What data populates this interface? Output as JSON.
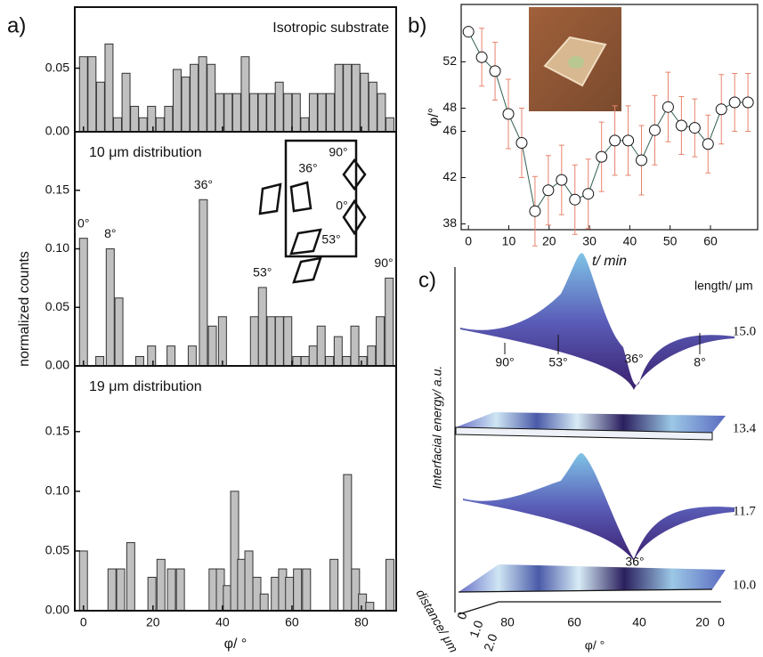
{
  "panel_labels": [
    "a)",
    "b)",
    "c)"
  ],
  "chart_data": [
    {
      "type": "bar",
      "title": "Isotropic substrate",
      "color": "#c0c0c0",
      "x": [
        0,
        2.45,
        4.9,
        7.35,
        9.8,
        12.25,
        14.7,
        17.15,
        19.6,
        22.05,
        24.5,
        26.95,
        29.4,
        31.85,
        34.3,
        36.75,
        39.2,
        41.65,
        44.1,
        46.55,
        49,
        51.45,
        53.9,
        56.35,
        58.8,
        61.25,
        63.7,
        66.15,
        68.6,
        71.05,
        73.5,
        75.95,
        78.4,
        80.85,
        83.3,
        85.75,
        88.2
      ],
      "values": [
        0.059,
        0.059,
        0.039,
        0.069,
        0.011,
        0.046,
        0.02,
        0.011,
        0.02,
        0.011,
        0.02,
        0.049,
        0.043,
        0.053,
        0.059,
        0.053,
        0.03,
        0.03,
        0.03,
        0.059,
        0.03,
        0.03,
        0.03,
        0.039,
        0.03,
        0.03,
        0.011,
        0.03,
        0.03,
        0.03,
        0.053,
        0.053,
        0.053,
        0.046,
        0.039,
        0.03,
        0.011
      ],
      "xlim": [
        -2.5,
        90
      ],
      "ylim": [
        0,
        0.098
      ],
      "yticks": [
        {
          "value": 0,
          "label": "0.00"
        },
        {
          "value": 0.05,
          "label": "0.05"
        }
      ]
    },
    {
      "type": "bar",
      "title": "10 μm distribution",
      "ylabel": "normalized counts",
      "color": "#c0c0c0",
      "x": [
        0,
        4.7,
        7.7,
        10.2,
        16.2,
        19.6,
        25.2,
        31.3,
        34.5,
        37.1,
        40,
        49.2,
        51.5,
        54,
        56.4,
        58.8,
        61.4,
        63.8,
        66.1,
        68.4,
        70.8,
        73.3,
        75.7,
        78.1,
        80.4,
        82.9,
        85.4,
        88
      ],
      "values": [
        0.109,
        0.008,
        0.1,
        0.058,
        0.008,
        0.017,
        0.017,
        0.017,
        0.142,
        0.034,
        0.042,
        0.042,
        0.067,
        0.042,
        0.042,
        0.042,
        0.008,
        0.008,
        0.017,
        0.034,
        0.008,
        0.025,
        0.008,
        0.034,
        0.008,
        0.017,
        0.042,
        0.075
      ],
      "xlim": [
        -2.5,
        90
      ],
      "ylim": [
        0,
        0.2
      ],
      "yticks": [
        {
          "value": 0,
          "label": "0.00"
        },
        {
          "value": 0.05,
          "label": "0.05"
        },
        {
          "value": 0.1,
          "label": "0.10"
        },
        {
          "value": 0.15,
          "label": "0.15"
        }
      ],
      "annotations": [
        {
          "text": "0°",
          "x": 0
        },
        {
          "text": "8°",
          "x": 7.7
        },
        {
          "text": "36°",
          "x": 34.5
        },
        {
          "text": "53°",
          "x": 51.5
        },
        {
          "text": "90°",
          "x": 88
        }
      ],
      "inset_labels": [
        "36°",
        "90°",
        "0°",
        "53°"
      ]
    },
    {
      "type": "bar",
      "title": "19 μm distribution",
      "xlabel": "φ/ °",
      "color": "#c0c0c0",
      "x": [
        0,
        8.2,
        10.7,
        13.6,
        19.7,
        22.3,
        25.3,
        27.9,
        37.3,
        39.4,
        41.4,
        43.5,
        45.5,
        47.6,
        49.9,
        52,
        55.2,
        57.3,
        59.3,
        61.6,
        64.2,
        72.1,
        76,
        78.3,
        80.3,
        82.4,
        88.2
      ],
      "values": [
        0.05,
        0.035,
        0.035,
        0.057,
        0.028,
        0.043,
        0.035,
        0.035,
        0.035,
        0.035,
        0.021,
        0.1,
        0.043,
        0.05,
        0.028,
        0.014,
        0.028,
        0.035,
        0.028,
        0.035,
        0.035,
        0.043,
        0.114,
        0.035,
        0.014,
        0.007,
        0.043
      ],
      "xlim": [
        -2.5,
        90
      ],
      "ylim": [
        0,
        0.205
      ],
      "xticks": [
        0,
        20,
        40,
        60,
        80
      ],
      "yticks": [
        {
          "value": 0,
          "label": "0.00"
        },
        {
          "value": 0.05,
          "label": "0.05"
        },
        {
          "value": 0.1,
          "label": "0.10"
        },
        {
          "value": 0.15,
          "label": "0.15"
        }
      ]
    },
    {
      "type": "line",
      "xlabel": "t/ min",
      "ylabel": "φ/°",
      "color": "#2f5f4f",
      "error_color": "#e8836b",
      "x": [
        0,
        3.3,
        6.6,
        9.9,
        13.2,
        16.5,
        19.8,
        23.1,
        26.4,
        29.7,
        33,
        36.3,
        39.6,
        42.9,
        46.2,
        49.5,
        52.8,
        56.1,
        59.4,
        62.7,
        66,
        69.3
      ],
      "values": [
        54.6,
        52.4,
        51.2,
        47.5,
        45,
        39.1,
        40.9,
        41.8,
        40.1,
        40.6,
        43.8,
        45.2,
        45.2,
        43.5,
        46.1,
        48.1,
        46.5,
        46.3,
        44.9,
        47.9,
        48.5,
        48.5
      ],
      "errors": [
        0,
        2.5,
        2.5,
        3,
        3,
        3,
        3,
        3,
        3,
        3,
        3,
        3,
        3,
        3,
        3,
        3,
        2.5,
        2.5,
        2.5,
        3,
        2.5,
        2.5
      ],
      "xlim": [
        -1.8,
        71.7
      ],
      "ylim": [
        37.5,
        56.96
      ],
      "xticks": [
        0,
        10,
        20,
        30,
        40,
        50,
        60
      ],
      "yticks": [
        38,
        42,
        46,
        48,
        52
      ]
    }
  ],
  "panel_c": {
    "length_title": "length/ μm",
    "lengths": [
      "15.0",
      "13.4",
      "11.7",
      "10.0"
    ],
    "surface_labels": [
      "90°",
      "53°",
      "36°",
      "8°",
      "36°"
    ],
    "ylabel": "Interfacial energy/ a.u.",
    "depth_label": "distance/ μm",
    "depth_ticks": [
      "0",
      "1.0",
      "2.0"
    ],
    "xlabel": "φ/ °",
    "xticks": [
      "80",
      "60",
      "40",
      "20",
      "0"
    ]
  }
}
